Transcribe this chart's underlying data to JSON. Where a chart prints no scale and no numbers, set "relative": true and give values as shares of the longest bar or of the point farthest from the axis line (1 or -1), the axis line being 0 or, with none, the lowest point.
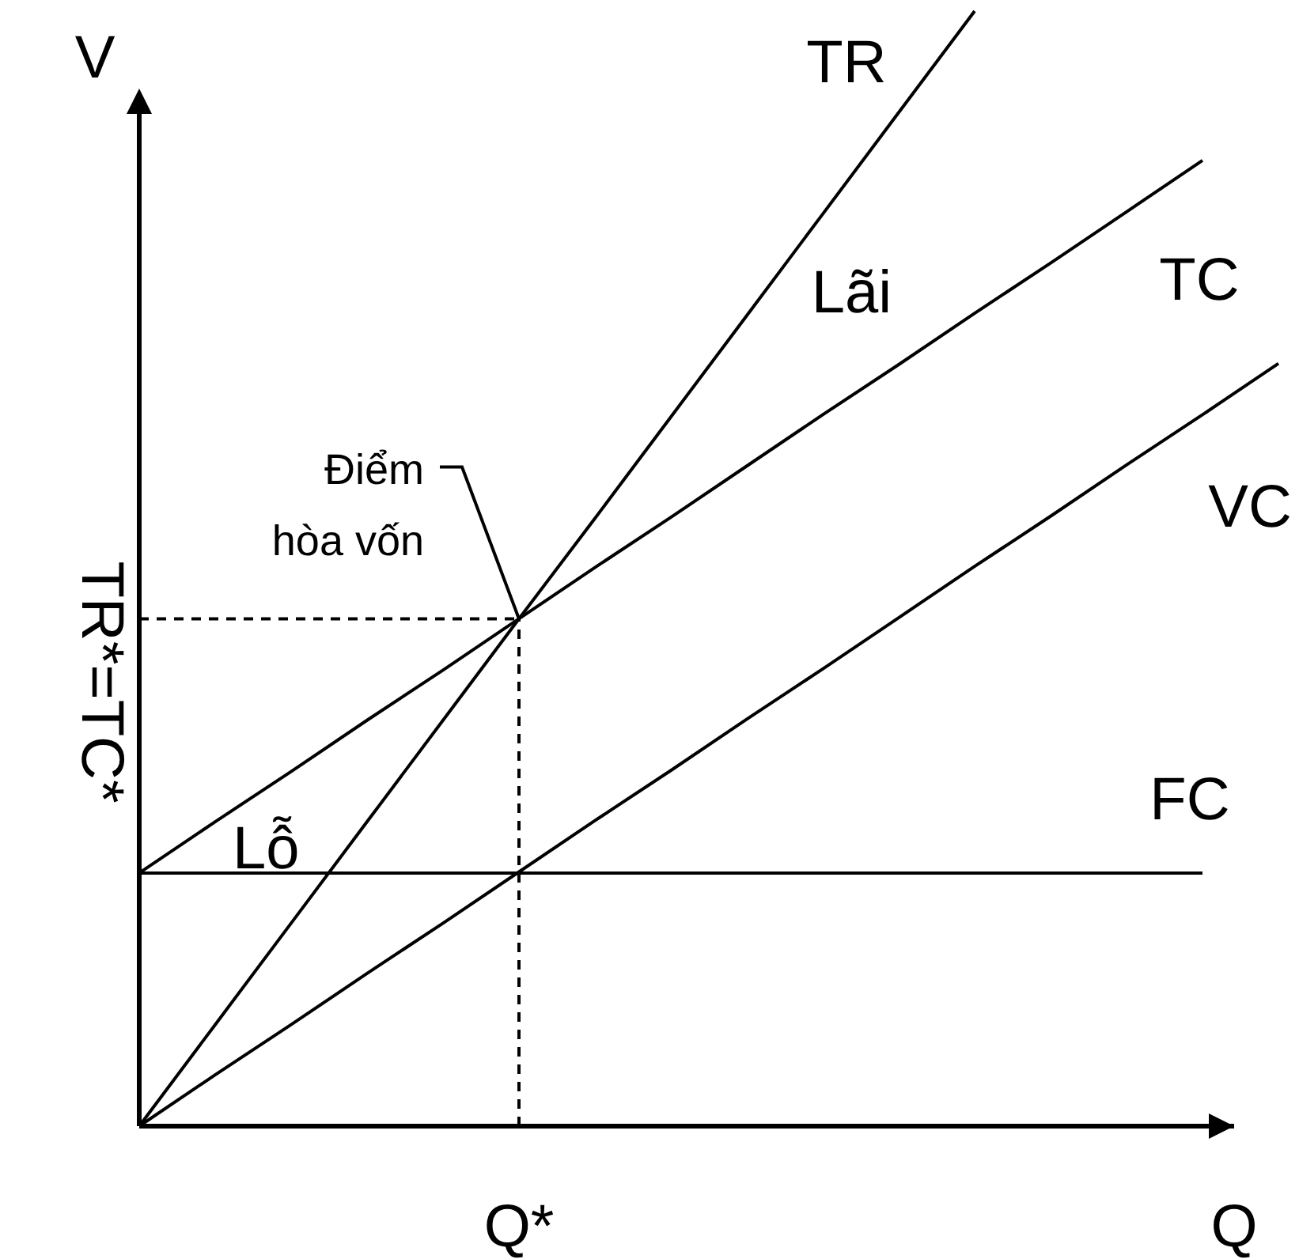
{
  "chart_data": {
    "type": "line",
    "relative": true,
    "xlabel": "Q",
    "ylabel": "V",
    "line_style": "solid",
    "categories": [
      null,
      null,
      null,
      null,
      null,
      null,
      null,
      null,
      null,
      null,
      null,
      null,
      null,
      null,
      null,
      null
    ],
    "series": [
      {
        "name": "TR",
        "color": "#000000",
        "values": [
          0,
          0.091,
          0.182,
          0.273,
          0.364,
          0.455,
          0.545,
          0.636,
          0.727,
          0.818,
          0.909,
          1,
          null,
          null,
          null,
          null
        ]
      },
      {
        "name": "TC",
        "color": "#000000",
        "values": [
          0.227,
          0.273,
          0.318,
          0.364,
          0.409,
          0.455,
          0.501,
          0.546,
          0.592,
          0.638,
          0.683,
          0.729,
          0.774,
          0.82,
          0.866,
          null
        ]
      },
      {
        "name": "VC",
        "color": "#000000",
        "values": [
          0,
          0.046,
          0.091,
          0.137,
          0.182,
          0.228,
          0.274,
          0.319,
          0.365,
          0.41,
          0.456,
          0.502,
          0.547,
          0.593,
          0.638,
          0.684
        ]
      },
      {
        "name": "FC",
        "color": "#000000",
        "values": [
          0.227,
          0.227,
          0.227,
          0.227,
          0.227,
          0.227,
          0.227,
          0.227,
          0.227,
          0.227,
          0.227,
          0.227,
          0.227,
          0.227,
          0.227,
          null
        ]
      }
    ],
    "ref_lines": [
      {
        "axis": "y",
        "value": 0.455,
        "label": "TR*=TC*",
        "line_style": "dashed"
      }
    ],
    "annotations": [
      {
        "text": "Điểm hòa vốn",
        "y": 0.455
      },
      "Lãi",
      "Lỗ",
      "Q*"
    ]
  }
}
